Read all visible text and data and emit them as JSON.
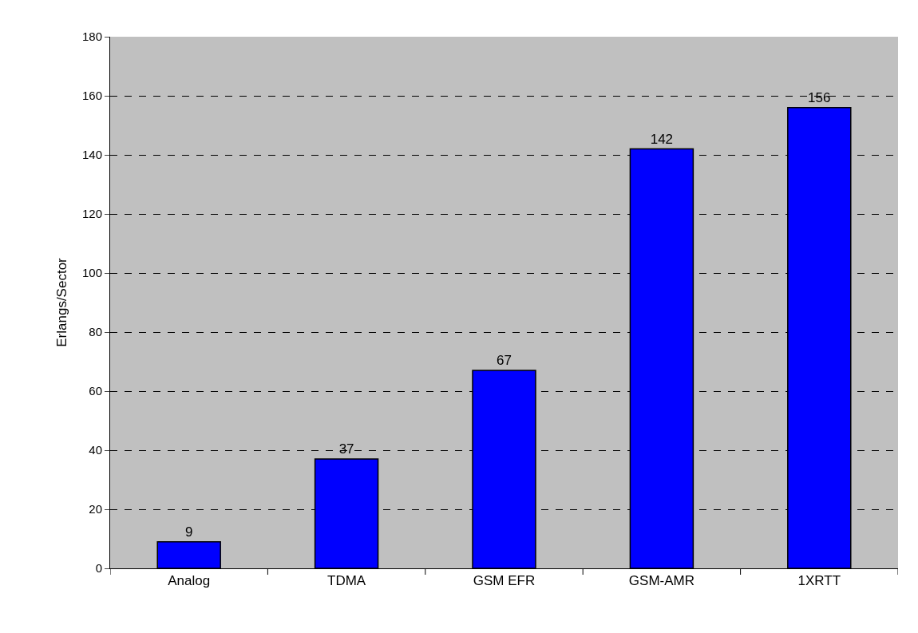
{
  "chart_data": {
    "type": "bar",
    "ylabel": "Erlangs/Sector",
    "categories": [
      "Analog",
      "TDMA",
      "GSM EFR",
      "GSM-AMR",
      "1XRTT"
    ],
    "values": [
      9,
      37,
      67,
      142,
      156
    ],
    "color": "#0000ff",
    "ylim": [
      0,
      180
    ],
    "yticks": [
      0,
      20,
      40,
      60,
      80,
      100,
      120,
      140,
      160,
      180
    ],
    "grid": "y",
    "data_labels": true,
    "legend": false
  }
}
